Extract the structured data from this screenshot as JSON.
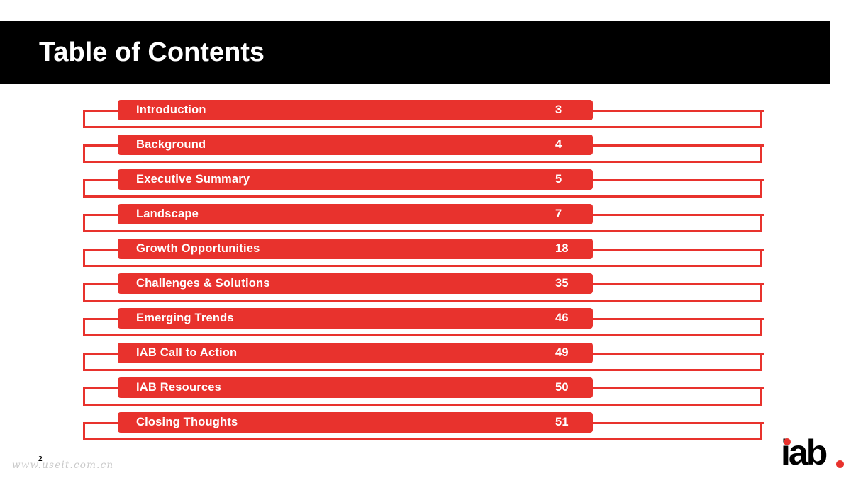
{
  "slide": {
    "title": "Table of Contents",
    "page_number": "2"
  },
  "toc": [
    {
      "label": "Introduction",
      "page": "3"
    },
    {
      "label": "Background",
      "page": "4"
    },
    {
      "label": "Executive Summary",
      "page": "5"
    },
    {
      "label": "Landscape",
      "page": "7"
    },
    {
      "label": "Growth Opportunities",
      "page": "18"
    },
    {
      "label": "Challenges & Solutions",
      "page": "35"
    },
    {
      "label": "Emerging Trends",
      "page": "46"
    },
    {
      "label": "IAB Call to Action",
      "page": "49"
    },
    {
      "label": "IAB Resources",
      "page": "50"
    },
    {
      "label": "Closing Thoughts",
      "page": "51"
    }
  ],
  "watermark": "www.useit.com.cn",
  "logo": {
    "text": "iab",
    "accent_color": "#e8322d"
  },
  "colors": {
    "accent": "#e8322d",
    "title_bar": "#000000"
  }
}
